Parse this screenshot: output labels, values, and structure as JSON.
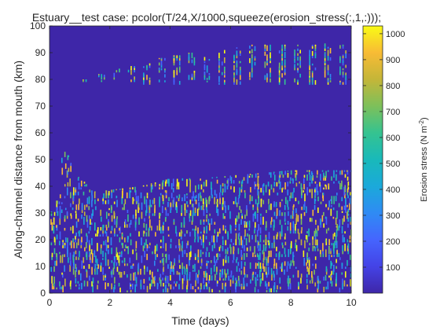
{
  "chart_data": {
    "type": "heatmap",
    "title": "Estuary__test case: pcolor(T/24,X/1000,squeeze(erosion_stress(:,1,:)));",
    "xlabel": "Time (days)",
    "ylabel": "Along-channel distance from mouth (km)",
    "xlim": [
      0,
      10
    ],
    "ylim": [
      0,
      100
    ],
    "xticks": [
      0,
      2,
      4,
      6,
      8,
      10
    ],
    "yticks": [
      0,
      10,
      20,
      30,
      40,
      50,
      60,
      70,
      80,
      90,
      100
    ],
    "grid": false,
    "colorbar": {
      "label_main": "Erosion stress (N m",
      "label_sup": "-2",
      "label_close": ")",
      "clim": [
        0,
        1030
      ],
      "ticks": [
        100,
        200,
        300,
        400,
        500,
        600,
        700,
        800,
        900,
        1000
      ],
      "colormap": "parula",
      "background_color": "#3e26a8"
    },
    "upper_region": {
      "y_range_km": [
        77,
        94
      ],
      "description_values": [
        {
          "t": 1.2,
          "ymin": 79,
          "ymax": 80
        },
        {
          "t": 1.7,
          "ymin": 79,
          "ymax": 82
        },
        {
          "t": 2.2,
          "ymin": 79,
          "ymax": 84
        },
        {
          "t": 2.7,
          "ymin": 79,
          "ymax": 85
        },
        {
          "t": 3.2,
          "ymin": 78,
          "ymax": 86
        },
        {
          "t": 3.7,
          "ymin": 78,
          "ymax": 88
        },
        {
          "t": 4.2,
          "ymin": 78,
          "ymax": 89
        },
        {
          "t": 4.7,
          "ymin": 78,
          "ymax": 90
        },
        {
          "t": 5.2,
          "ymin": 78,
          "ymax": 91
        },
        {
          "t": 5.7,
          "ymin": 78,
          "ymax": 91
        },
        {
          "t": 6.2,
          "ymin": 78,
          "ymax": 92
        },
        {
          "t": 6.7,
          "ymin": 78,
          "ymax": 93
        },
        {
          "t": 7.2,
          "ymin": 78,
          "ymax": 93
        },
        {
          "t": 7.7,
          "ymin": 78,
          "ymax": 93
        },
        {
          "t": 8.2,
          "ymin": 78,
          "ymax": 93
        },
        {
          "t": 8.7,
          "ymin": 78,
          "ymax": 93
        },
        {
          "t": 9.2,
          "ymin": 78,
          "ymax": 94
        },
        {
          "t": 9.7,
          "ymin": 78,
          "ymax": 93
        }
      ]
    },
    "lower_region": {
      "y_range_km": [
        0,
        56
      ],
      "top_envelope": [
        {
          "t": 0.0,
          "y": 30
        },
        {
          "t": 0.3,
          "y": 36
        },
        {
          "t": 0.45,
          "y": 56
        },
        {
          "t": 0.8,
          "y": 45
        },
        {
          "t": 1.5,
          "y": 38
        },
        {
          "t": 3.0,
          "y": 40
        },
        {
          "t": 4.0,
          "y": 43
        },
        {
          "t": 5.0,
          "y": 43
        },
        {
          "t": 6.0,
          "y": 44
        },
        {
          "t": 7.0,
          "y": 45
        },
        {
          "t": 8.0,
          "y": 46
        },
        {
          "t": 9.0,
          "y": 46
        },
        {
          "t": 10.0,
          "y": 46
        }
      ]
    }
  }
}
